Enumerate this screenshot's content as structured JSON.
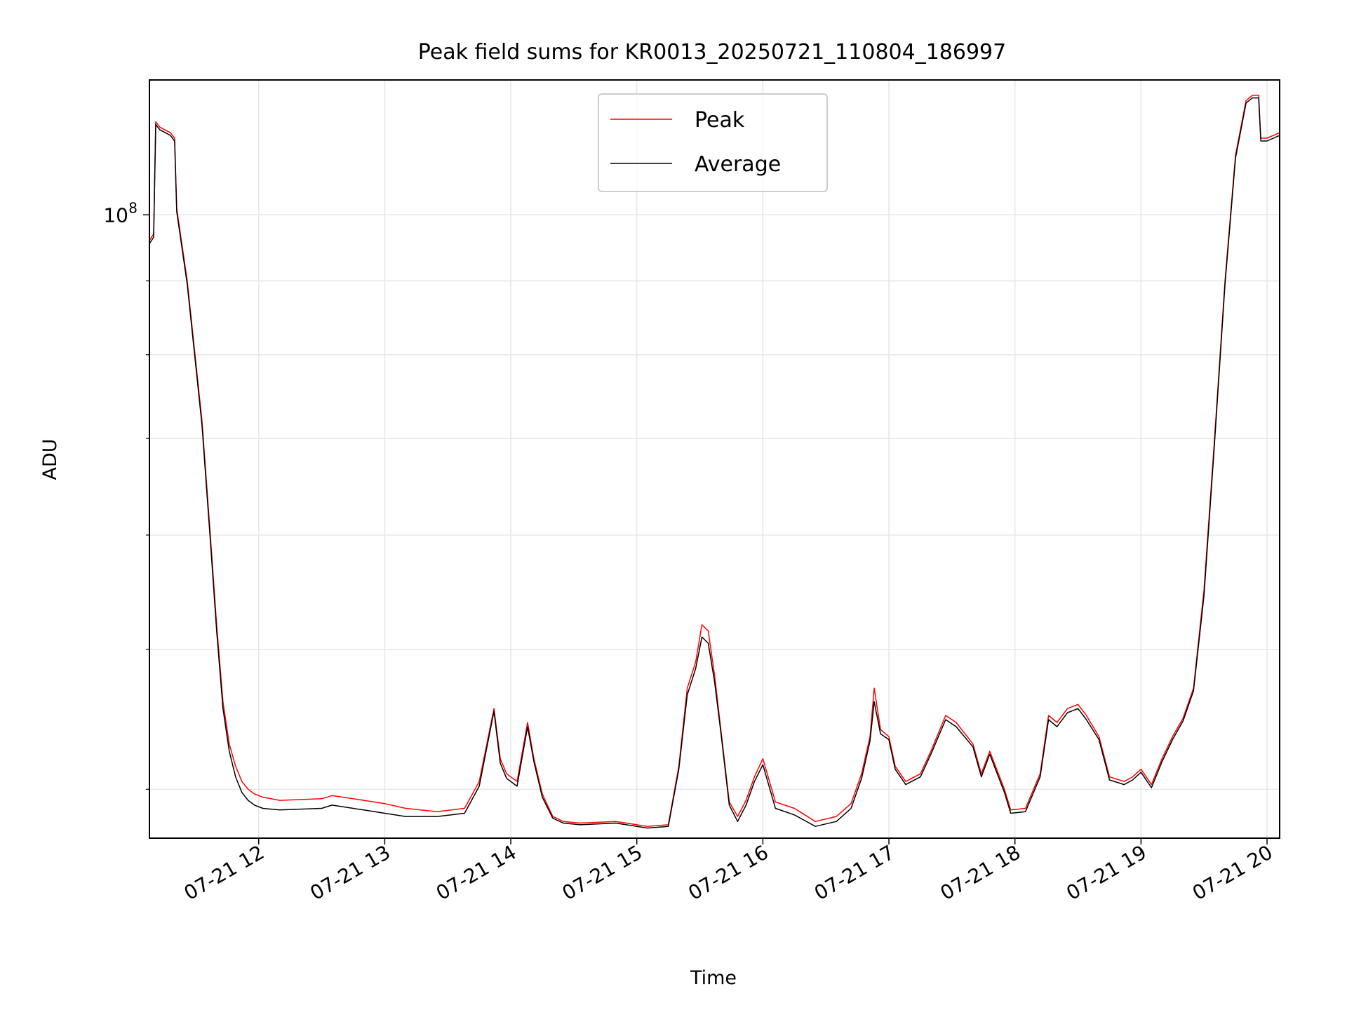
{
  "chart_data": {
    "type": "line",
    "title": "Peak field sums for KR0013_20250721_110804_186997",
    "xlabel": "Time",
    "ylabel": "ADU",
    "x_axis": "datetime",
    "y_scale": "log",
    "xlim": [
      "2025-07-21 11:08",
      "2025-07-21 20:06"
    ],
    "ylim": [
      37000000,
      124000000
    ],
    "x_tick_labels": [
      "07-21 12",
      "07-21 13",
      "07-21 14",
      "07-21 15",
      "07-21 16",
      "07-21 17",
      "07-21 18",
      "07-21 19",
      "07-21 20"
    ],
    "x_tick_values": [
      "2025-07-21 12:00",
      "2025-07-21 13:00",
      "2025-07-21 14:00",
      "2025-07-21 15:00",
      "2025-07-21 16:00",
      "2025-07-21 17:00",
      "2025-07-21 18:00",
      "2025-07-21 19:00",
      "2025-07-21 20:00"
    ],
    "y_major_ticks": [
      {
        "value": 100000000,
        "base": "10",
        "exp": "8"
      }
    ],
    "y_minor_ticks": [
      40000000,
      50000000,
      60000000,
      70000000,
      80000000,
      90000000
    ],
    "grid": true,
    "legend_position": "top-center",
    "series": [
      {
        "name": "Peak",
        "color": "#ff0000",
        "x": [
          "2025-07-21 11:08",
          "2025-07-21 11:10",
          "2025-07-21 11:11",
          "2025-07-21 11:13",
          "2025-07-21 11:18",
          "2025-07-21 11:20",
          "2025-07-21 11:21",
          "2025-07-21 11:26",
          "2025-07-21 11:33",
          "2025-07-21 11:37",
          "2025-07-21 11:40",
          "2025-07-21 11:43",
          "2025-07-21 11:46",
          "2025-07-21 11:49",
          "2025-07-21 11:52",
          "2025-07-21 11:55",
          "2025-07-21 11:58",
          "2025-07-21 12:02",
          "2025-07-21 12:10",
          "2025-07-21 12:30",
          "2025-07-21 12:35",
          "2025-07-21 12:50",
          "2025-07-21 13:00",
          "2025-07-21 13:10",
          "2025-07-21 13:25",
          "2025-07-21 13:38",
          "2025-07-21 13:45",
          "2025-07-21 13:52",
          "2025-07-21 13:55",
          "2025-07-21 13:58",
          "2025-07-21 14:03",
          "2025-07-21 14:08",
          "2025-07-21 14:11",
          "2025-07-21 14:15",
          "2025-07-21 14:20",
          "2025-07-21 14:25",
          "2025-07-21 14:33",
          "2025-07-21 14:50",
          "2025-07-21 15:05",
          "2025-07-21 15:15",
          "2025-07-21 15:20",
          "2025-07-21 15:24",
          "2025-07-21 15:28",
          "2025-07-21 15:31",
          "2025-07-21 15:34",
          "2025-07-21 15:37",
          "2025-07-21 15:40",
          "2025-07-21 15:44",
          "2025-07-21 15:48",
          "2025-07-21 15:52",
          "2025-07-21 15:56",
          "2025-07-21 16:00",
          "2025-07-21 16:06",
          "2025-07-21 16:15",
          "2025-07-21 16:25",
          "2025-07-21 16:35",
          "2025-07-21 16:42",
          "2025-07-21 16:47",
          "2025-07-21 16:51",
          "2025-07-21 16:53",
          "2025-07-21 16:56",
          "2025-07-21 17:00",
          "2025-07-21 17:03",
          "2025-07-21 17:08",
          "2025-07-21 17:15",
          "2025-07-21 17:20",
          "2025-07-21 17:27",
          "2025-07-21 17:32",
          "2025-07-21 17:40",
          "2025-07-21 17:44",
          "2025-07-21 17:48",
          "2025-07-21 17:55",
          "2025-07-21 17:58",
          "2025-07-21 18:05",
          "2025-07-21 18:12",
          "2025-07-21 18:16",
          "2025-07-21 18:20",
          "2025-07-21 18:25",
          "2025-07-21 18:30",
          "2025-07-21 18:34",
          "2025-07-21 18:40",
          "2025-07-21 18:45",
          "2025-07-21 18:52",
          "2025-07-21 18:56",
          "2025-07-21 19:00",
          "2025-07-21 19:05",
          "2025-07-21 19:10",
          "2025-07-21 19:15",
          "2025-07-21 19:20",
          "2025-07-21 19:25",
          "2025-07-21 19:30",
          "2025-07-21 19:35",
          "2025-07-21 19:40",
          "2025-07-21 19:45",
          "2025-07-21 19:50",
          "2025-07-21 19:53",
          "2025-07-21 19:56",
          "2025-07-21 19:57",
          "2025-07-21 20:00",
          "2025-07-21 20:06"
        ],
        "y": [
          96000000,
          97000000,
          116000000,
          115000000,
          114000000,
          113000000,
          101000000,
          90000000,
          72000000,
          60000000,
          52000000,
          46000000,
          43000000,
          41500000,
          40500000,
          40000000,
          39700000,
          39500000,
          39300000,
          39400000,
          39600000,
          39300000,
          39100000,
          38800000,
          38600000,
          38800000,
          40500000,
          45500000,
          42000000,
          41000000,
          40500000,
          44500000,
          42000000,
          39700000,
          38300000,
          38000000,
          37900000,
          38000000,
          37700000,
          37800000,
          41500000,
          47000000,
          49000000,
          52000000,
          51500000,
          48000000,
          44000000,
          39200000,
          38300000,
          39300000,
          40800000,
          42000000,
          39200000,
          38800000,
          38000000,
          38300000,
          39100000,
          41000000,
          43500000,
          47000000,
          44000000,
          43500000,
          41500000,
          40500000,
          41000000,
          42500000,
          45000000,
          44500000,
          43000000,
          41000000,
          42500000,
          40000000,
          38700000,
          38800000,
          41000000,
          45000000,
          44500000,
          45500000,
          45800000,
          45000000,
          43500000,
          40800000,
          40500000,
          40800000,
          41300000,
          40300000,
          42000000,
          43500000,
          44800000,
          47000000,
          55000000,
          70000000,
          90000000,
          110000000,
          120000000,
          121000000,
          121000000,
          113000000,
          113000000,
          114000000
        ]
      },
      {
        "name": "Average",
        "color": "#000000",
        "x": [
          "2025-07-21 11:08",
          "2025-07-21 11:10",
          "2025-07-21 11:11",
          "2025-07-21 11:13",
          "2025-07-21 11:18",
          "2025-07-21 11:20",
          "2025-07-21 11:21",
          "2025-07-21 11:26",
          "2025-07-21 11:33",
          "2025-07-21 11:37",
          "2025-07-21 11:40",
          "2025-07-21 11:43",
          "2025-07-21 11:46",
          "2025-07-21 11:49",
          "2025-07-21 11:52",
          "2025-07-21 11:55",
          "2025-07-21 11:58",
          "2025-07-21 12:02",
          "2025-07-21 12:10",
          "2025-07-21 12:30",
          "2025-07-21 12:35",
          "2025-07-21 12:50",
          "2025-07-21 13:00",
          "2025-07-21 13:10",
          "2025-07-21 13:25",
          "2025-07-21 13:38",
          "2025-07-21 13:45",
          "2025-07-21 13:52",
          "2025-07-21 13:55",
          "2025-07-21 13:58",
          "2025-07-21 14:03",
          "2025-07-21 14:08",
          "2025-07-21 14:11",
          "2025-07-21 14:15",
          "2025-07-21 14:20",
          "2025-07-21 14:25",
          "2025-07-21 14:33",
          "2025-07-21 14:50",
          "2025-07-21 15:05",
          "2025-07-21 15:15",
          "2025-07-21 15:20",
          "2025-07-21 15:24",
          "2025-07-21 15:28",
          "2025-07-21 15:31",
          "2025-07-21 15:34",
          "2025-07-21 15:37",
          "2025-07-21 15:40",
          "2025-07-21 15:44",
          "2025-07-21 15:48",
          "2025-07-21 15:52",
          "2025-07-21 15:56",
          "2025-07-21 16:00",
          "2025-07-21 16:06",
          "2025-07-21 16:15",
          "2025-07-21 16:25",
          "2025-07-21 16:35",
          "2025-07-21 16:42",
          "2025-07-21 16:47",
          "2025-07-21 16:51",
          "2025-07-21 16:53",
          "2025-07-21 16:56",
          "2025-07-21 17:00",
          "2025-07-21 17:03",
          "2025-07-21 17:08",
          "2025-07-21 17:15",
          "2025-07-21 17:20",
          "2025-07-21 17:27",
          "2025-07-21 17:32",
          "2025-07-21 17:40",
          "2025-07-21 17:44",
          "2025-07-21 17:48",
          "2025-07-21 17:55",
          "2025-07-21 17:58",
          "2025-07-21 18:05",
          "2025-07-21 18:12",
          "2025-07-21 18:16",
          "2025-07-21 18:20",
          "2025-07-21 18:25",
          "2025-07-21 18:30",
          "2025-07-21 18:34",
          "2025-07-21 18:40",
          "2025-07-21 18:45",
          "2025-07-21 18:52",
          "2025-07-21 18:56",
          "2025-07-21 19:00",
          "2025-07-21 19:05",
          "2025-07-21 19:10",
          "2025-07-21 19:15",
          "2025-07-21 19:20",
          "2025-07-21 19:25",
          "2025-07-21 19:30",
          "2025-07-21 19:35",
          "2025-07-21 19:40",
          "2025-07-21 19:45",
          "2025-07-21 19:50",
          "2025-07-21 19:53",
          "2025-07-21 19:56",
          "2025-07-21 19:57",
          "2025-07-21 20:00",
          "2025-07-21 20:06"
        ],
        "y": [
          95500000,
          96500000,
          115500000,
          114500000,
          113500000,
          112500000,
          100500000,
          89500000,
          71500000,
          59500000,
          51500000,
          45500000,
          42500000,
          40800000,
          39800000,
          39300000,
          39000000,
          38800000,
          38700000,
          38800000,
          39000000,
          38700000,
          38500000,
          38300000,
          38300000,
          38500000,
          40200000,
          45300000,
          41700000,
          40700000,
          40200000,
          44200000,
          41800000,
          39500000,
          38200000,
          37900000,
          37800000,
          37900000,
          37600000,
          37700000,
          41300000,
          46500000,
          48500000,
          51000000,
          50500000,
          47500000,
          43800000,
          39000000,
          38000000,
          39000000,
          40500000,
          41600000,
          38800000,
          38400000,
          37700000,
          38000000,
          38800000,
          40700000,
          43200000,
          46000000,
          43700000,
          43300000,
          41300000,
          40300000,
          40800000,
          42300000,
          44700000,
          44200000,
          42800000,
          40800000,
          42300000,
          39800000,
          38500000,
          38600000,
          40800000,
          44700000,
          44200000,
          45200000,
          45500000,
          44700000,
          43300000,
          40600000,
          40300000,
          40600000,
          41100000,
          40100000,
          41800000,
          43300000,
          44600000,
          46800000,
          54500000,
          69500000,
          89500000,
          109500000,
          119500000,
          120500000,
          120500000,
          112500000,
          112500000,
          113500000
        ]
      }
    ]
  }
}
